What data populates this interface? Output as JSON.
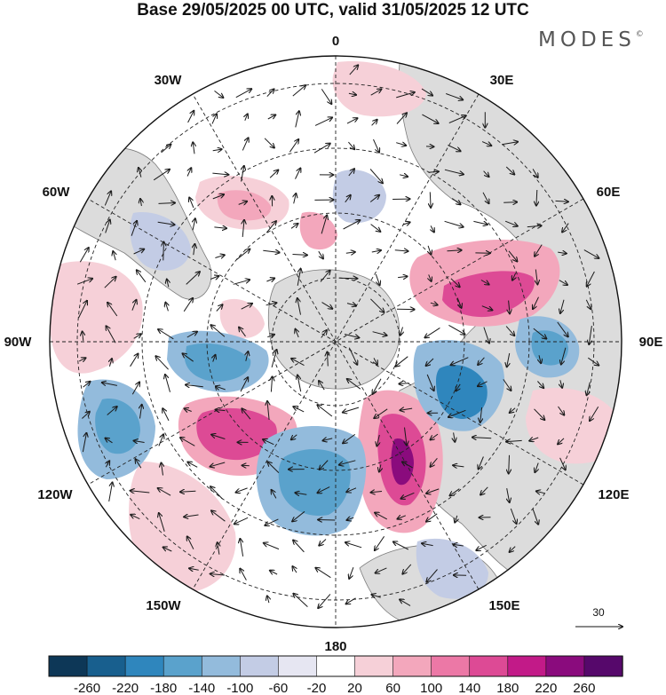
{
  "title": "Base 29/05/2025 00 UTC, valid 31/05/2025 12 UTC",
  "brand": {
    "text": "MODES",
    "mark": "©"
  },
  "meridian_labels": [
    {
      "id": "lon-0",
      "text": "0"
    },
    {
      "id": "lon-30e",
      "text": "30E"
    },
    {
      "id": "lon-60e",
      "text": "60E"
    },
    {
      "id": "lon-90e",
      "text": "90E"
    },
    {
      "id": "lon-120e",
      "text": "120E"
    },
    {
      "id": "lon-150e",
      "text": "150E"
    },
    {
      "id": "lon-180",
      "text": "180"
    },
    {
      "id": "lon-150w",
      "text": "150W"
    },
    {
      "id": "lon-120w",
      "text": "120W"
    },
    {
      "id": "lon-90w",
      "text": "90W"
    },
    {
      "id": "lon-60w",
      "text": "60W"
    },
    {
      "id": "lon-30w",
      "text": "30W"
    }
  ],
  "reference_vector": {
    "label": "30"
  },
  "colorbar": {
    "tick_labels": [
      "-260",
      "-220",
      "-180",
      "-140",
      "-100",
      "-60",
      "-20",
      "20",
      "60",
      "100",
      "140",
      "180",
      "220",
      "260"
    ],
    "colors": [
      "#0d3757",
      "#185f8e",
      "#2f86bd",
      "#5aa2cc",
      "#93bbdc",
      "#c3cce5",
      "#e6e6f2",
      "#ffffff",
      "#f6d0d8",
      "#f3a7bc",
      "#ec78a6",
      "#dd4a95",
      "#c21a88",
      "#8a0b7d",
      "#56086b"
    ]
  },
  "colors": {
    "land": "#d2d2d2",
    "coast": "#666666",
    "grid": "#222222",
    "arrow": "#1a1a1a"
  }
}
